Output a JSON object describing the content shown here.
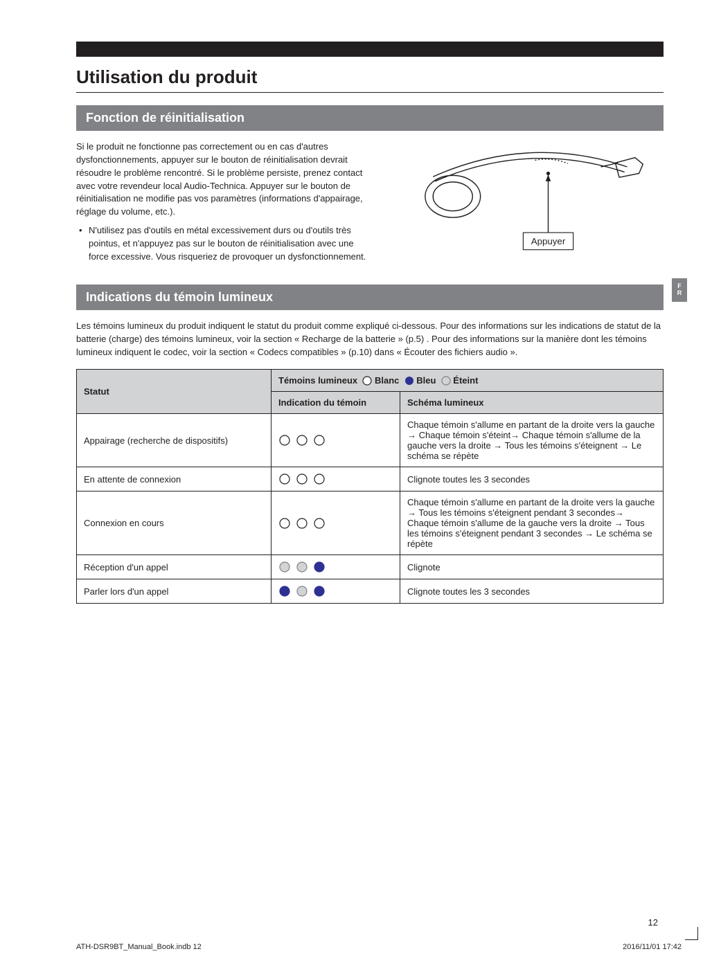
{
  "colors": {
    "text": "#231f20",
    "band": "#231f20",
    "sectionHeaderBg": "#808285",
    "sectionHeaderText": "#ffffff",
    "tableHeaderBg": "#d1d3d4",
    "tableBorder": "#231f20",
    "circleWhiteFill": "#ffffff",
    "circleWhiteStroke": "#231f20",
    "circleBlueFill": "#2e3192",
    "circleGrayFill": "#d1d3d4",
    "circleGrayStroke": "#808285",
    "sideTabBg": "#808285"
  },
  "title": "Utilisation du produit",
  "sideTab": "F\nR",
  "section1": {
    "header": "Fonction de réinitialisation",
    "para": "Si le produit ne fonctionne pas correctement ou en cas d'autres dysfonctionnements, appuyer sur le bouton de réinitialisation devrait résoudre le problème rencontré. Si le problème persiste, prenez contact avec votre revendeur local Audio-Technica. Appuyer sur le bouton de réinitialisation ne modifie pas vos paramètres (informations d'appairage, réglage du volume, etc.).",
    "bullet": "N'utilisez pas d'outils en métal excessivement durs ou d'outils très pointus, et n'appuyez pas sur le bouton de réinitialisation avec une force excessive. Vous risqueriez de provoquer un dysfonctionnement.",
    "diagramLabel": "Appuyer"
  },
  "section2": {
    "header": "Indications du témoin lumineux",
    "intro": "Les témoins lumineux du produit indiquent le statut du produit comme expliqué ci-dessous. Pour des informations sur les indications de statut de la batterie (charge) des témoins lumineux, voir la section « Recharge de la batterie » (p.5) . Pour des informations sur la manière dont les témoins lumineux indiquent le codec, voir la section « Codecs compatibles » (p.10) dans « Écouter des fichiers audio ».",
    "legend": {
      "prefix": "Témoins lumineux",
      "white": "Blanc",
      "blue": "Bleu",
      "off": "Éteint"
    },
    "columns": {
      "status": "Statut",
      "indication": "Indication du témoin",
      "scheme": "Schéma lumineux"
    },
    "rows": [
      {
        "status": "Appairage (recherche de dispositifs)",
        "dots": [
          "white",
          "white",
          "white"
        ],
        "scheme": "Chaque témoin s'allume en partant de la droite vers la gauche → Chaque témoin s'éteint→ Chaque témoin s'allume de la gauche vers la droite → Tous les témoins s'éteignent → Le schéma se répète"
      },
      {
        "status": "En attente de connexion",
        "dots": [
          "white",
          "white",
          "white"
        ],
        "scheme": "Clignote toutes les 3 secondes"
      },
      {
        "status": "Connexion en cours",
        "dots": [
          "white",
          "white",
          "white"
        ],
        "scheme": "Chaque témoin s'allume en partant de la droite vers la gauche → Tous les témoins s'éteignent pendant 3 secondes→ Chaque témoin s'allume de la gauche vers la droite → Tous les témoins s'éteignent pendant 3 secondes → Le schéma se répète"
      },
      {
        "status": "Réception d'un appel",
        "dots": [
          "gray",
          "gray",
          "blue"
        ],
        "scheme": "Clignote"
      },
      {
        "status": "Parler lors d'un appel",
        "dots": [
          "blue",
          "gray",
          "blue"
        ],
        "scheme": "Clignote toutes les 3 secondes"
      }
    ]
  },
  "pageNumber": "12",
  "footerLeft": "ATH-DSR9BT_Manual_Book.indb   12",
  "footerRight": "2016/11/01   17:42"
}
